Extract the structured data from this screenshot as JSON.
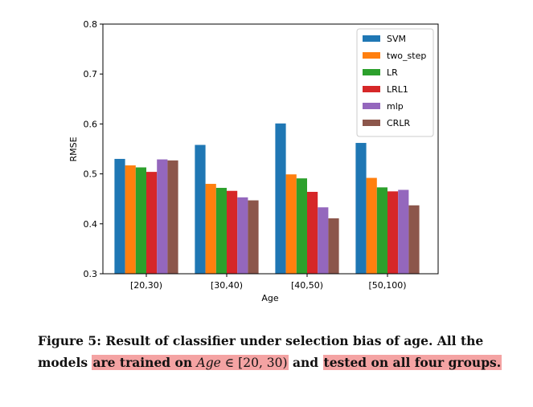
{
  "chart_data": {
    "type": "bar",
    "categories": [
      "[20,30)",
      "[30,40)",
      "[40,50)",
      "[50,100)"
    ],
    "series": [
      {
        "name": "SVM",
        "color": "#1f77b4",
        "values": [
          0.53,
          0.558,
          0.601,
          0.562
        ]
      },
      {
        "name": "two_step",
        "color": "#ff7f0e",
        "values": [
          0.517,
          0.48,
          0.499,
          0.492
        ]
      },
      {
        "name": "LR",
        "color": "#2ca02c",
        "values": [
          0.513,
          0.472,
          0.491,
          0.473
        ]
      },
      {
        "name": "LRL1",
        "color": "#d62728",
        "values": [
          0.504,
          0.466,
          0.464,
          0.465
        ]
      },
      {
        "name": "mlp",
        "color": "#9467bd",
        "values": [
          0.529,
          0.453,
          0.433,
          0.468
        ]
      },
      {
        "name": "CRLR",
        "color": "#8c564b",
        "values": [
          0.527,
          0.447,
          0.411,
          0.437
        ]
      }
    ],
    "xlabel": "Age",
    "ylabel": "RMSE",
    "ylim": [
      0.3,
      0.8
    ],
    "yticks": [
      "0.3",
      "0.4",
      "0.5",
      "0.6",
      "0.7",
      "0.8"
    ],
    "legend_position": "top-right",
    "grid": false
  },
  "caption": {
    "part1": "Figure 5: Result of classifier under selection bias of age. All the models ",
    "hl1_a": "are trained on ",
    "hl1_var": "Age",
    "hl1_b": " ∈ [20, 30)",
    "part2": " and ",
    "hl2": "tested on all four groups."
  }
}
